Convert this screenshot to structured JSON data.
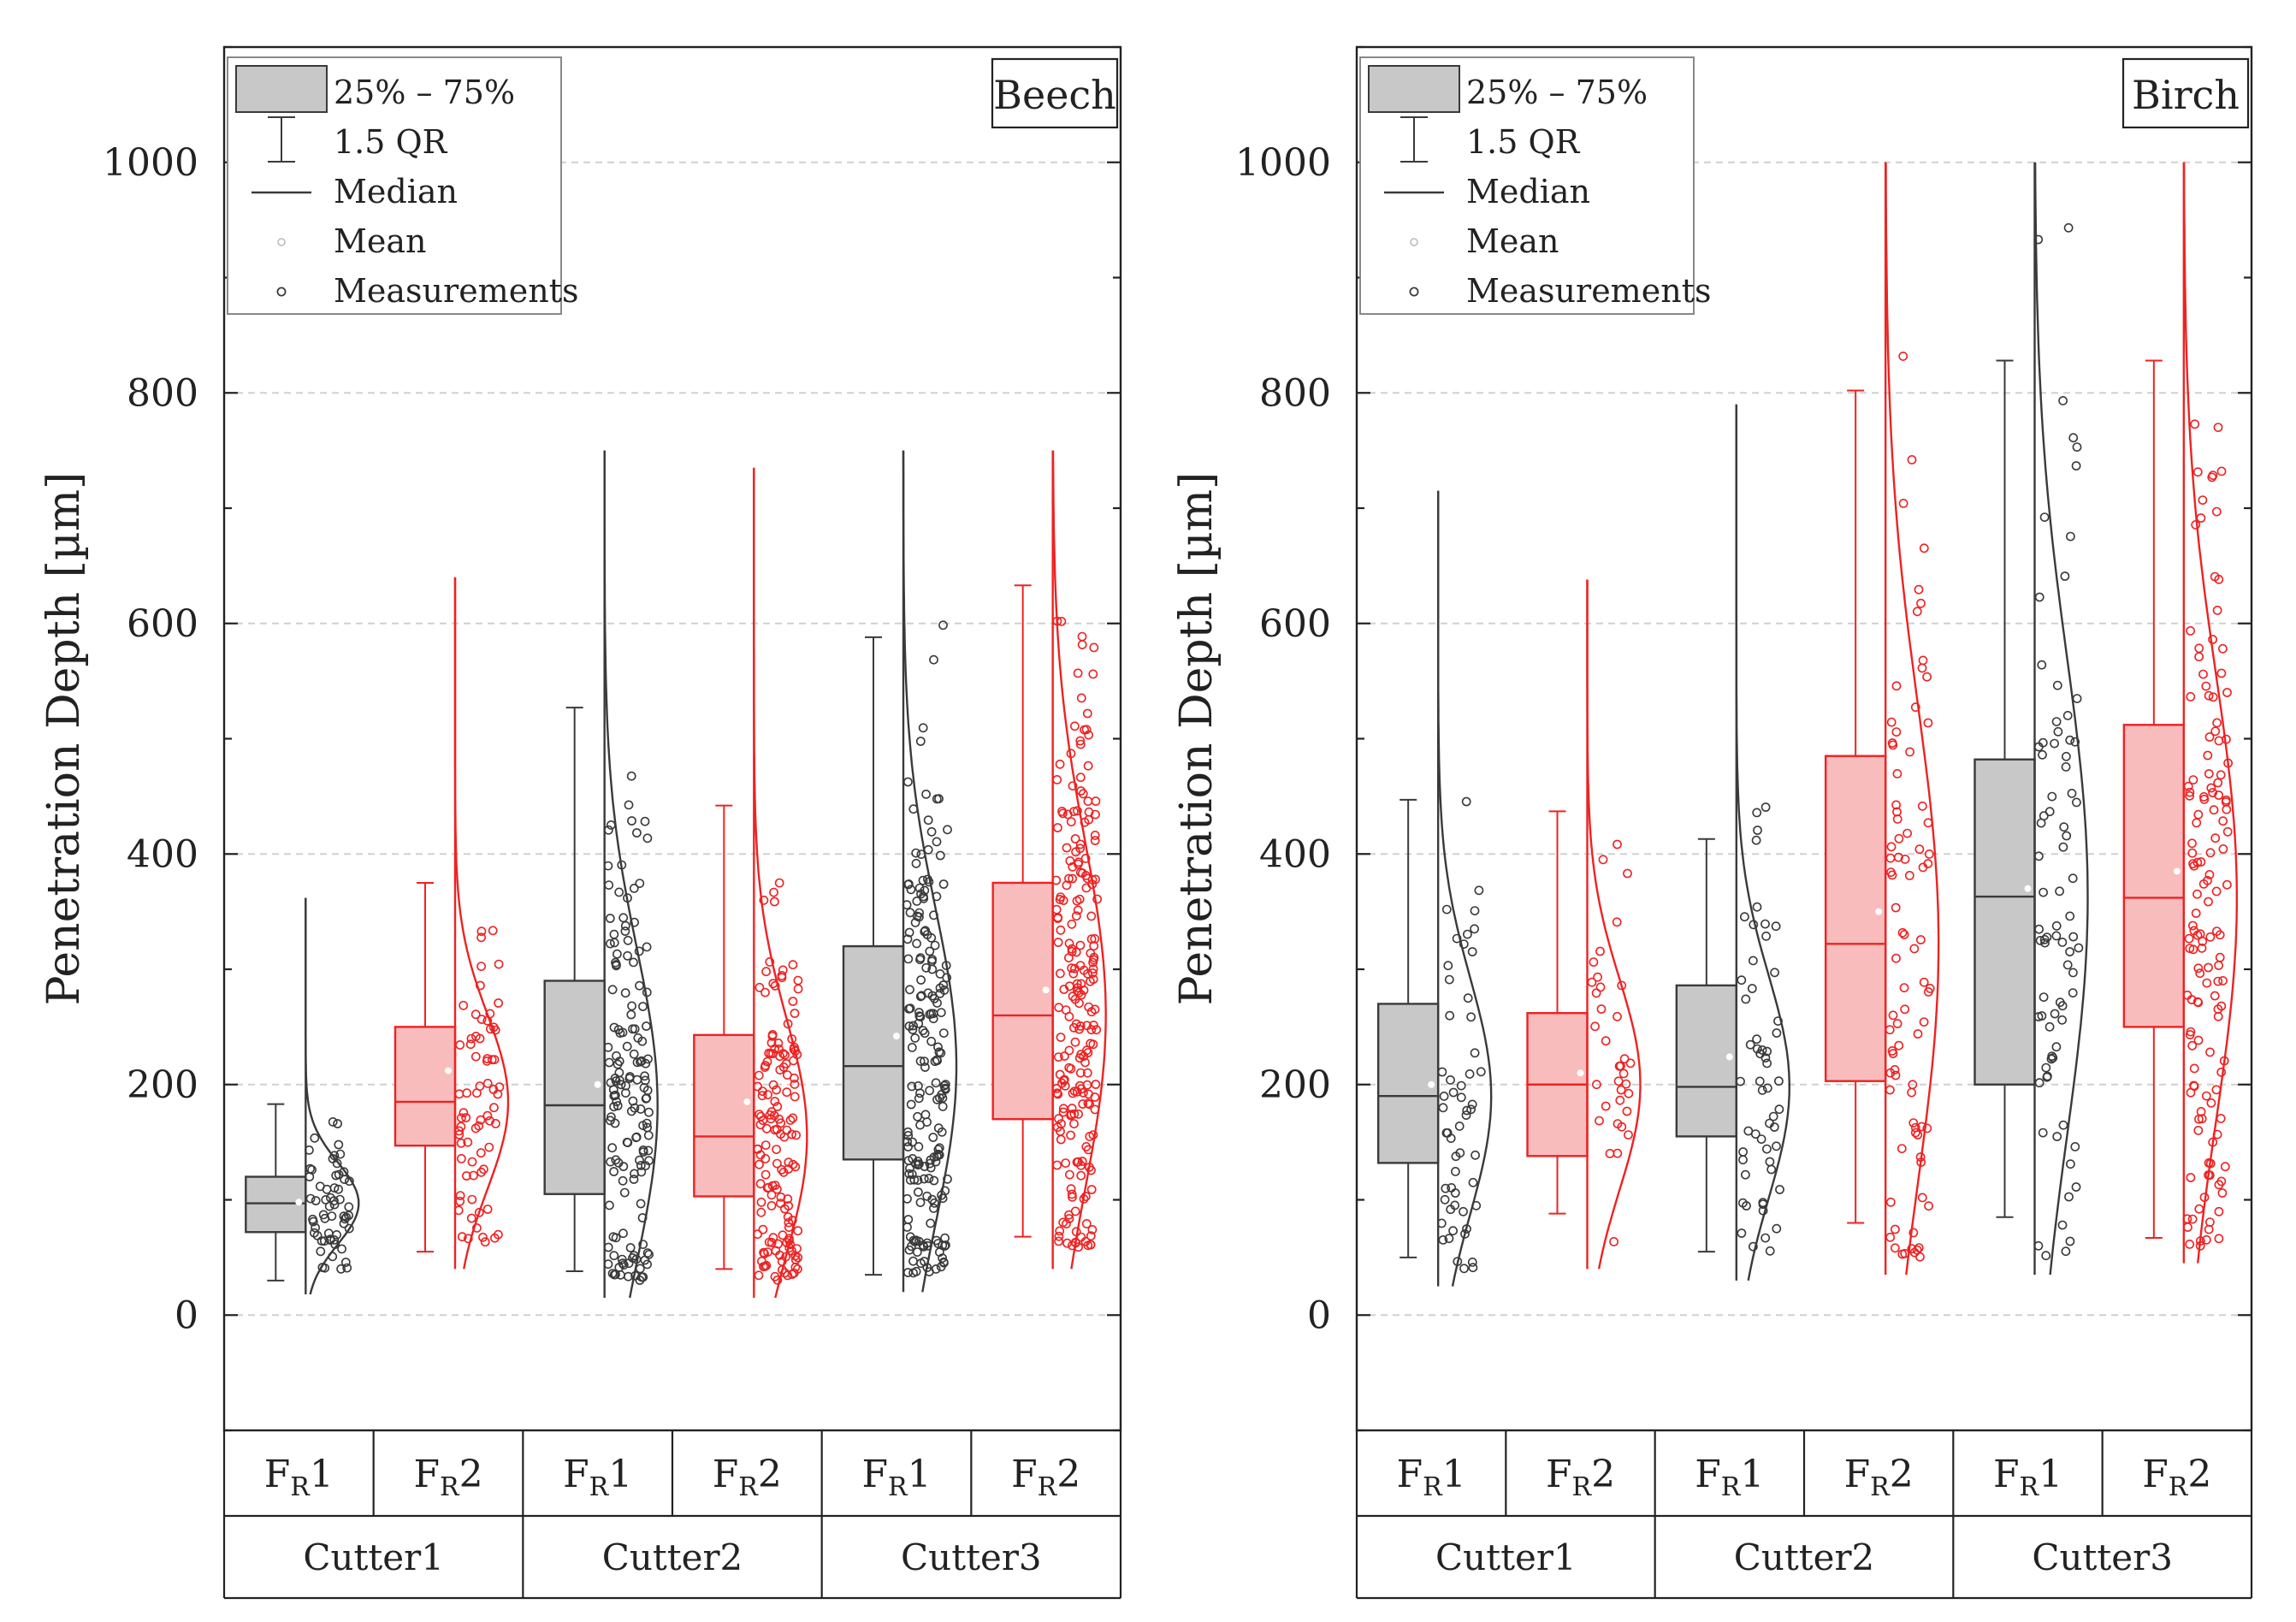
{
  "chart_data": [
    {
      "type": "box",
      "title": "Beech",
      "ylabel": "Penetration Depth [µm]",
      "ylim": [
        -100,
        1100
      ],
      "yticks": [
        0,
        200,
        400,
        600,
        800,
        1000
      ],
      "group_labels": [
        "Cutter1",
        "Cutter2",
        "Cutter3"
      ],
      "series_labels": [
        "F_R1",
        "F_R2"
      ],
      "legend": {
        "box": "25% – 75%",
        "whisker": "1.5 QR",
        "median": "Median",
        "mean": "Mean",
        "points": "Measurements"
      },
      "boxes": [
        {
          "group": "Cutter1",
          "series": "F_R1",
          "color": "gray",
          "q1": 72,
          "median": 97,
          "q3": 120,
          "mean": 98,
          "whisker_low": 30,
          "whisker_high": 183,
          "curve_min": 18,
          "curve_max": 362,
          "n": 60,
          "seed": 11
        },
        {
          "group": "Cutter1",
          "series": "F_R2",
          "color": "red",
          "q1": 147,
          "median": 185,
          "q3": 250,
          "mean": 212,
          "whisker_low": 55,
          "whisker_high": 375,
          "curve_min": 40,
          "curve_max": 640,
          "n": 70,
          "seed": 12
        },
        {
          "group": "Cutter2",
          "series": "F_R1",
          "color": "gray",
          "q1": 105,
          "median": 182,
          "q3": 290,
          "mean": 200,
          "whisker_low": 38,
          "whisker_high": 527,
          "curve_min": 15,
          "curve_max": 750,
          "n": 150,
          "seed": 13
        },
        {
          "group": "Cutter2",
          "series": "F_R2",
          "color": "red",
          "q1": 103,
          "median": 155,
          "q3": 243,
          "mean": 185,
          "whisker_low": 40,
          "whisker_high": 442,
          "curve_min": 15,
          "curve_max": 735,
          "n": 150,
          "seed": 14
        },
        {
          "group": "Cutter3",
          "series": "F_R1",
          "color": "gray",
          "q1": 135,
          "median": 216,
          "q3": 320,
          "mean": 242,
          "whisker_low": 35,
          "whisker_high": 588,
          "curve_min": 20,
          "curve_max": 750,
          "n": 200,
          "seed": 15
        },
        {
          "group": "Cutter3",
          "series": "F_R2",
          "color": "red",
          "q1": 170,
          "median": 260,
          "q3": 375,
          "mean": 282,
          "whisker_low": 68,
          "whisker_high": 633,
          "curve_min": 40,
          "curve_max": 750,
          "n": 220,
          "seed": 16
        }
      ]
    },
    {
      "type": "box",
      "title": "Birch",
      "ylabel": "Penetration Depth [µm]",
      "ylim": [
        -100,
        1100
      ],
      "yticks": [
        0,
        200,
        400,
        600,
        800,
        1000
      ],
      "group_labels": [
        "Cutter1",
        "Cutter2",
        "Cutter3"
      ],
      "series_labels": [
        "F_R1",
        "F_R2"
      ],
      "legend": {
        "box": "25% – 75%",
        "whisker": "1.5 QR",
        "median": "Median",
        "mean": "Mean",
        "points": "Measurements"
      },
      "boxes": [
        {
          "group": "Cutter1",
          "series": "F_R1",
          "color": "gray",
          "q1": 132,
          "median": 190,
          "q3": 270,
          "mean": 200,
          "whisker_low": 50,
          "whisker_high": 447,
          "curve_min": 25,
          "curve_max": 715,
          "n": 55,
          "seed": 21
        },
        {
          "group": "Cutter1",
          "series": "F_R2",
          "color": "red",
          "q1": 138,
          "median": 200,
          "q3": 262,
          "mean": 210,
          "whisker_low": 88,
          "whisker_high": 437,
          "curve_min": 40,
          "curve_max": 638,
          "n": 35,
          "seed": 22
        },
        {
          "group": "Cutter2",
          "series": "F_R1",
          "color": "gray",
          "q1": 155,
          "median": 198,
          "q3": 286,
          "mean": 224,
          "whisker_low": 55,
          "whisker_high": 413,
          "curve_min": 30,
          "curve_max": 790,
          "n": 55,
          "seed": 23
        },
        {
          "group": "Cutter2",
          "series": "F_R2",
          "color": "red",
          "q1": 203,
          "median": 322,
          "q3": 485,
          "mean": 350,
          "whisker_low": 80,
          "whisker_high": 802,
          "curve_min": 35,
          "curve_max": 1000,
          "n": 85,
          "seed": 24
        },
        {
          "group": "Cutter3",
          "series": "F_R1",
          "color": "gray",
          "q1": 200,
          "median": 363,
          "q3": 482,
          "mean": 370,
          "whisker_low": 85,
          "whisker_high": 828,
          "curve_min": 35,
          "curve_max": 1000,
          "n": 80,
          "seed": 25
        },
        {
          "group": "Cutter3",
          "series": "F_R2",
          "color": "red",
          "q1": 250,
          "median": 362,
          "q3": 512,
          "mean": 385,
          "whisker_low": 67,
          "whisker_high": 828,
          "curve_min": 45,
          "curve_max": 1000,
          "n": 140,
          "seed": 26
        }
      ]
    }
  ]
}
